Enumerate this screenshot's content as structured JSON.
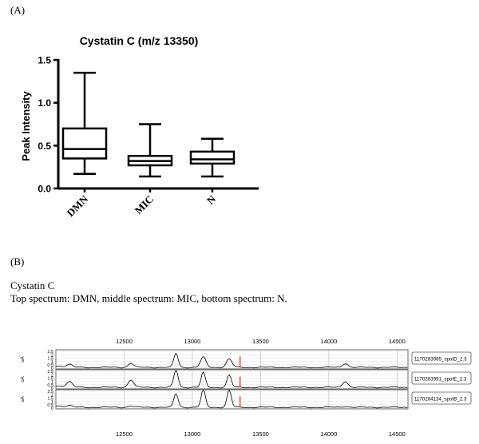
{
  "panel_a_label": "(A)",
  "panel_b_label": "(B)",
  "caption": {
    "line1": "Cystatin C",
    "line2": "Top spectrum: DMN, middle spectrum: MIC, bottom spectrum: N."
  },
  "chart_data": [
    {
      "type": "box",
      "title": "Cystatin C (m/z 13350)",
      "xlabel": "",
      "ylabel": "Peak Intensity",
      "ylim": [
        0,
        1.5
      ],
      "yticks": [
        "0.0",
        "0.5",
        "1.0",
        "1.5"
      ],
      "categories": [
        "DMN",
        "MIC",
        "N"
      ],
      "boxes": [
        {
          "category": "DMN",
          "min": 0.17,
          "q1": 0.35,
          "median": 0.46,
          "q3": 0.7,
          "max": 1.35
        },
        {
          "category": "MIC",
          "min": 0.14,
          "q1": 0.27,
          "median": 0.32,
          "q3": 0.38,
          "max": 0.75
        },
        {
          "category": "N",
          "min": 0.14,
          "q1": 0.29,
          "median": 0.34,
          "q3": 0.43,
          "max": 0.58
        }
      ]
    },
    {
      "type": "line",
      "xlim": [
        12000,
        14580
      ],
      "xticks": [
        "12500",
        "13000",
        "13500",
        "14000",
        "14500"
      ],
      "ylabel": "uA",
      "ylim": [
        0,
        2.5
      ],
      "yticks": [
        "0",
        "0.5",
        "1",
        "1.5",
        "2",
        "2.5"
      ],
      "marker_x": 13350,
      "series": [
        {
          "name": "1170283985_spotD_2.3",
          "peaks": [
            [
              12100,
              0.35
            ],
            [
              12550,
              0.6
            ],
            [
              12880,
              2.1
            ],
            [
              13080,
              1.5
            ],
            [
              13270,
              1.25
            ],
            [
              14120,
              0.6
            ]
          ]
        },
        {
          "name": "1170283991_spotE_2.3",
          "peaks": [
            [
              12100,
              0.75
            ],
            [
              12550,
              1.1
            ],
            [
              12880,
              2.6
            ],
            [
              13080,
              2.2
            ],
            [
              13270,
              1.85
            ],
            [
              14120,
              0.9
            ]
          ]
        },
        {
          "name": "1170284134_spotB_2.3",
          "peaks": [
            [
              12100,
              0.15
            ],
            [
              12550,
              0.2
            ],
            [
              12880,
              2.0
            ],
            [
              13080,
              2.6
            ],
            [
              13270,
              2.55
            ],
            [
              14120,
              0.15
            ]
          ]
        }
      ]
    }
  ]
}
